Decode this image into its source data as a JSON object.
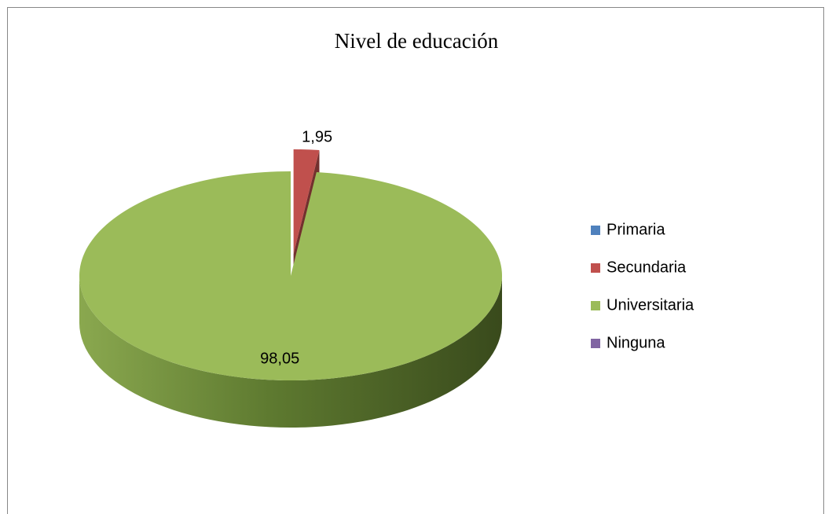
{
  "chart_data": {
    "type": "pie3d",
    "title": "Nivel de educación",
    "categories": [
      "Primaria",
      "Secundaria",
      "Universitaria",
      "Ninguna"
    ],
    "values": [
      0,
      1.95,
      98.05,
      0
    ],
    "value_labels": [
      null,
      "1,95",
      "98,05",
      null
    ],
    "colors": [
      "#4f81bd",
      "#c0504d",
      "#9bbb59",
      "#8064a2"
    ],
    "exploded": "Secundaria",
    "legend": "right"
  }
}
